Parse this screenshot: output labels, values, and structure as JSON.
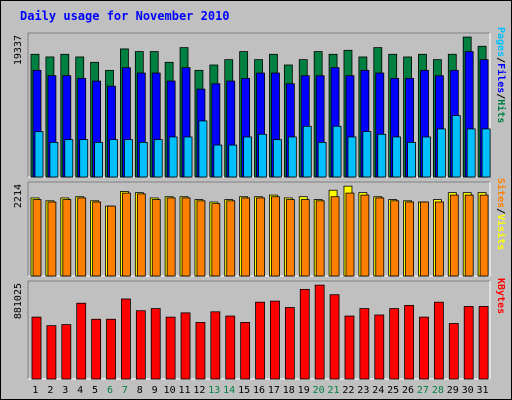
{
  "chart_data": {
    "type": "bar",
    "title": "Daily usage for November 2010",
    "days": [
      "1",
      "2",
      "3",
      "4",
      "5",
      "6",
      "7",
      "8",
      "9",
      "10",
      "11",
      "12",
      "13",
      "14",
      "15",
      "16",
      "17",
      "18",
      "19",
      "20",
      "21",
      "22",
      "23",
      "24",
      "25",
      "26",
      "27",
      "28",
      "29",
      "30",
      "31"
    ],
    "weekend_days": [
      "6",
      "7",
      "13",
      "14",
      "20",
      "21",
      "27",
      "28"
    ],
    "colors": {
      "hits": "#008040",
      "files": "#0000ff",
      "pages": "#00c0ff",
      "visits": "#ffff00",
      "sites": "#ff8000",
      "kbytes": "#ff0000",
      "title": "#0000ff",
      "weekday_label": "#000000",
      "weekend_label": "#008040"
    },
    "panels": [
      {
        "id": "hits_files_pages",
        "max_label": "19337",
        "ylim": [
          0,
          19337
        ],
        "series": [
          {
            "name": "Hits",
            "color": "#008040",
            "values": [
              16950,
              16580,
              16950,
              16580,
              15840,
              14730,
              17690,
              17320,
              17320,
              15840,
              17870,
              14730,
              15470,
              16210,
              17320,
              16210,
              16950,
              15470,
              16210,
              17320,
              16950,
              17500,
              16580,
              17870,
              16950,
              16580,
              16950,
              16210,
              16950,
              19330,
              18060
            ]
          },
          {
            "name": "Files",
            "color": "#0000ff",
            "values": [
              14730,
              13990,
              13990,
              13620,
              13250,
              12540,
              15100,
              14360,
              14360,
              13250,
              15100,
              12140,
              12880,
              13250,
              13620,
              14360,
              14360,
              12880,
              13990,
              13990,
              15100,
              13990,
              14730,
              14360,
              13620,
              13620,
              14730,
              13990,
              14730,
              17320,
              16210
            ]
          },
          {
            "name": "Pages",
            "color": "#00c0ff",
            "values": [
              6260,
              4780,
              5160,
              5160,
              4780,
              5160,
              5160,
              4780,
              5160,
              5530,
              5530,
              7740,
              4410,
              4410,
              5530,
              5900,
              5160,
              5530,
              7000,
              4780,
              7000,
              5530,
              6270,
              5900,
              5530,
              4780,
              5530,
              6640,
              8480,
              6640,
              6640
            ]
          }
        ]
      },
      {
        "id": "visits_sites",
        "max_label": "2214",
        "ylim": [
          0,
          2214
        ],
        "series": [
          {
            "name": "Visits",
            "color": "#ffff00",
            "values": [
              1920,
              1850,
              1920,
              1950,
              1850,
              1720,
              2080,
              2050,
              1920,
              1950,
              1950,
              1880,
              1820,
              1880,
              1950,
              1950,
              1990,
              1920,
              1950,
              1880,
              2110,
              2210,
              2050,
              1950,
              1880,
              1850,
              1820,
              1880,
              2050,
              2050,
              2050
            ]
          },
          {
            "name": "Sites",
            "color": "#ff8000",
            "values": [
              1880,
              1820,
              1880,
              1920,
              1820,
              1720,
              2040,
              2020,
              1880,
              1920,
              1920,
              1850,
              1780,
              1850,
              1920,
              1920,
              1950,
              1880,
              1880,
              1850,
              1950,
              2040,
              1990,
              1920,
              1850,
              1820,
              1820,
              1820,
              1990,
              1990,
              1990
            ]
          }
        ]
      },
      {
        "id": "kbytes",
        "max_label": "881025",
        "ylim": [
          0,
          881025
        ],
        "series": [
          {
            "name": "KBytes",
            "color": "#ff0000",
            "values": [
              580000,
              500000,
              510000,
              710000,
              560000,
              560000,
              750000,
              640000,
              660000,
              580000,
              620000,
              530000,
              630000,
              590000,
              530000,
              720000,
              730000,
              670000,
              840000,
              880000,
              790000,
              590000,
              660000,
              600000,
              660000,
              690000,
              580000,
              720000,
              520000,
              680000,
              680000
            ]
          }
        ]
      }
    ],
    "right_labels": [
      {
        "parts": [
          {
            "text": "Pages",
            "color": "#00c0ff"
          },
          {
            "text": "/",
            "color": "#000000"
          },
          {
            "text": "Files",
            "color": "#0000ff"
          },
          {
            "text": "/",
            "color": "#000000"
          },
          {
            "text": "Hits",
            "color": "#008040"
          }
        ]
      },
      {
        "parts": [
          {
            "text": "Sites",
            "color": "#ff8000"
          },
          {
            "text": "/",
            "color": "#000000"
          },
          {
            "text": "Visits",
            "color": "#ffff00"
          }
        ]
      },
      {
        "parts": [
          {
            "text": "KBytes",
            "color": "#ff0000"
          }
        ]
      }
    ]
  }
}
